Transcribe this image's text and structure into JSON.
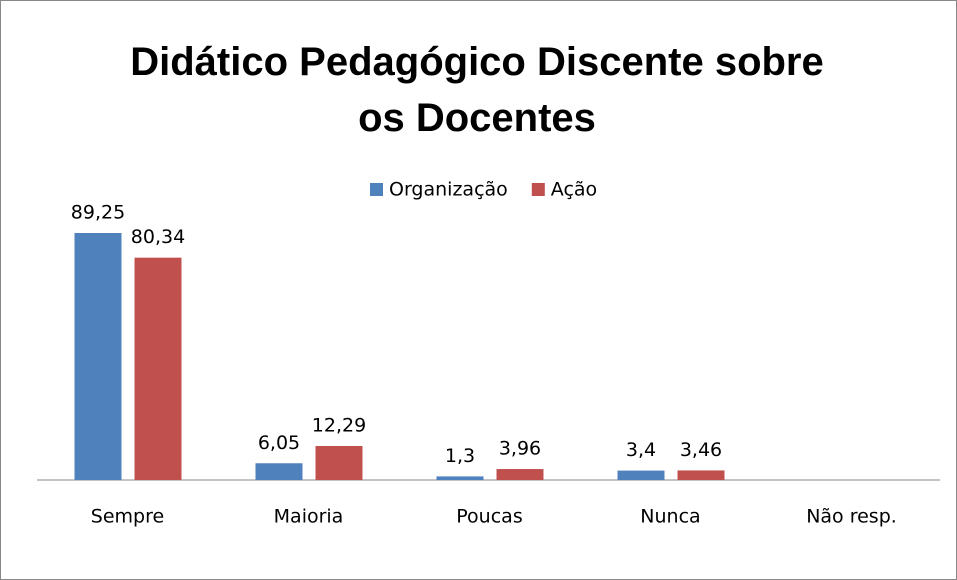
{
  "chart_data": {
    "type": "bar",
    "title": "Didático Pedagógico Discente sobre os Docentes",
    "categories": [
      "Sempre",
      "Maioria",
      "Poucas",
      "Nunca",
      "Não resp."
    ],
    "series": [
      {
        "name": "Organização",
        "color": "#4f81bd",
        "values": [
          89.25,
          6.05,
          1.3,
          3.4,
          null
        ],
        "value_labels": [
          "89,25",
          "6,05",
          "1,3",
          "3,4",
          null
        ]
      },
      {
        "name": "Ação",
        "color": "#c0504d",
        "values": [
          80.34,
          12.29,
          3.96,
          3.46,
          null
        ],
        "value_labels": [
          "80,34",
          "12,29",
          "3,96",
          "3,46",
          null
        ]
      }
    ],
    "legend": "top"
  }
}
